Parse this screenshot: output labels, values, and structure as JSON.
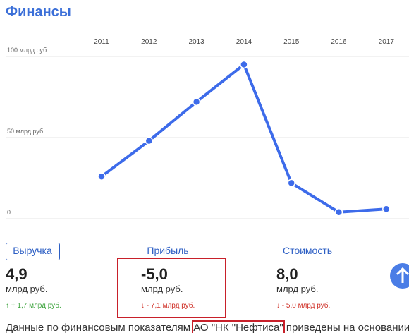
{
  "header": {
    "title": "Финансы"
  },
  "chart_data": {
    "type": "line",
    "categories": [
      "2011",
      "2012",
      "2013",
      "2014",
      "2015",
      "2016",
      "2017"
    ],
    "series": [
      {
        "color": "#3d6bea",
        "values": [
          26,
          48,
          72,
          95,
          22,
          4,
          6
        ]
      }
    ],
    "ylim": [
      0,
      100
    ],
    "yticks": [
      0,
      {
        "value": 50,
        "label": "50 млрд руб."
      },
      {
        "value": 100,
        "label": "100 млрд руб."
      }
    ],
    "grid": true
  },
  "metrics": [
    {
      "label": "Выручка",
      "value": "4,9",
      "unit": "млрд руб.",
      "change": "↑ + 1,7 млрд руб."
    },
    {
      "label": "Прибыль",
      "value": "-5,0",
      "unit": "млрд руб.",
      "change": "↓ - 7,1 млрд руб."
    },
    {
      "label": "Стоимость",
      "value": "8,0",
      "unit": "млрд руб.",
      "change": "↓ - 5,0 млрд руб."
    }
  ],
  "footer": {
    "before": "Данные по финансовым показателям ",
    "highlight": "АО \"НК \"Нефтиса\"",
    "after": " приведены на основании"
  }
}
